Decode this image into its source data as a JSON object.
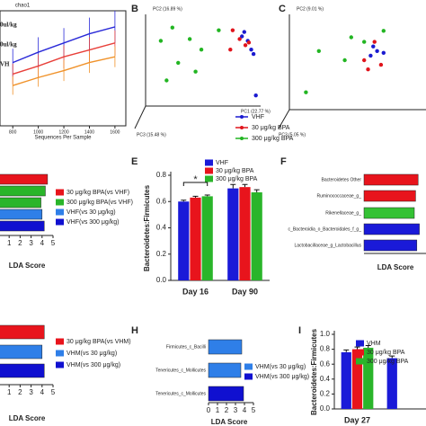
{
  "chart_data": [
    {
      "type": "line",
      "title": "chao1",
      "xlabel": "Sequences Per Sample",
      "x": [
        800,
        1000,
        1200,
        1400,
        1600
      ],
      "xlim": [
        700,
        1650
      ],
      "xticks": [
        800,
        1000,
        1200,
        1400,
        1600
      ],
      "ylim": [
        0,
        100
      ],
      "series": [
        {
          "name": "0ul/kg",
          "color": "#2a2ad8",
          "values": [
            55,
            64,
            72,
            80,
            86
          ],
          "errors": [
            12,
            13,
            13,
            14,
            14
          ]
        },
        {
          "name": "0ul/kg",
          "color": "#e8403a",
          "values": [
            45,
            52,
            60,
            66,
            72
          ],
          "errors": [
            9,
            10,
            10,
            11,
            11
          ]
        },
        {
          "name": "VH",
          "color": "#f0922a",
          "values": [
            35,
            42,
            48,
            55,
            60
          ],
          "errors": [
            8,
            8,
            9,
            9,
            9
          ]
        }
      ]
    },
    {
      "type": "scatter",
      "label": "B",
      "ylabel": "PC2 (16.89 %)",
      "xlabel": "PC1 (22.77 %)",
      "zlabel": "PC3 (15.48 %)",
      "xlim": [
        0,
        100
      ],
      "ylim": [
        0,
        100
      ],
      "series": [
        {
          "name": "VHF",
          "color": "#1a1ad0",
          "x": [
            85,
            88,
            80,
            90,
            92,
            82
          ],
          "values": [
            70,
            60,
            75,
            55,
            8,
            80
          ]
        },
        {
          "name": "30 μg/kg BPA",
          "color": "#e0141c",
          "x": [
            72,
            78,
            83,
            70,
            86
          ],
          "values": [
            82,
            72,
            65,
            60,
            68
          ]
        },
        {
          "name": "300 μg/kg BPA",
          "color": "#22b522",
          "x": [
            20,
            35,
            10,
            45,
            25,
            40,
            60,
            15
          ],
          "values": [
            85,
            72,
            70,
            60,
            45,
            35,
            82,
            25
          ]
        }
      ]
    },
    {
      "type": "scatter",
      "label": "C",
      "ylabel": "PC2 (9.01 %)",
      "zlabel": "PC3 (5.05 %)",
      "xlim": [
        0,
        100
      ],
      "ylim": [
        0,
        100
      ],
      "series": [
        {
          "color": "#1a1ad0",
          "x": [
            62,
            65,
            60,
            70
          ],
          "values": [
            65,
            60,
            55,
            58
          ]
        },
        {
          "color": "#e0141c",
          "x": [
            55,
            58,
            68,
            63
          ],
          "values": [
            50,
            40,
            45,
            70
          ]
        },
        {
          "color": "#22b522",
          "x": [
            20,
            45,
            55,
            40,
            10,
            70
          ],
          "values": [
            60,
            75,
            70,
            50,
            15,
            82
          ]
        }
      ]
    },
    {
      "type": "hbar",
      "xlabel": "LDA Score",
      "xlim": [
        0,
        5
      ],
      "xticks": [
        1,
        2,
        3,
        4,
        5
      ],
      "values": [
        4.5,
        4.3,
        3.9,
        4.0,
        4.2
      ],
      "colors": [
        "#e8141c",
        "#2ab52a",
        "#2ab52a",
        "#2f7fe8",
        "#1010d0"
      ],
      "legend": [
        {
          "name": "30 μg/kg BPA(vs VHF)",
          "color": "#e8141c"
        },
        {
          "name": "300 μg/kg BPA(vs VHF)",
          "color": "#2ab52a"
        },
        {
          "name": "VHF(vs 30 μg/kg)",
          "color": "#2f7fe8"
        },
        {
          "name": "VHF(vs 300 μg/kg)",
          "color": "#1010d0"
        }
      ]
    },
    {
      "type": "bar",
      "label": "E",
      "ylabel": "Bacteroidetes:Firmicutes",
      "annotation": "*",
      "categories": [
        "Day 16",
        "Day 90"
      ],
      "ylim": [
        0,
        0.8
      ],
      "yticks": [
        {
          "value": 0,
          "label": "0.0"
        },
        0.2,
        0.4,
        0.6,
        0.8
      ],
      "series": [
        {
          "name": "VHF",
          "color": "#1a1ad8",
          "values": [
            0.6,
            0.7
          ],
          "errors": [
            0.01,
            0.03
          ]
        },
        {
          "name": "30 μg/kg BPA",
          "color": "#e8141c",
          "values": [
            0.63,
            0.71
          ],
          "errors": [
            0.01,
            0.02
          ]
        },
        {
          "name": "300 μg/kg BPA",
          "color": "#2ab52a",
          "values": [
            0.64,
            0.67
          ],
          "errors": [
            0.01,
            0.02
          ]
        }
      ]
    },
    {
      "type": "hbar",
      "label": "F",
      "xlabel": "LDA Score",
      "xlim": [
        0,
        5
      ],
      "categories": [
        "Bacteroidetes Other",
        "Ruminococcaceae_g_",
        "Rikenellaceae_g_",
        "c_Bacteroidia_o_Bacteroidales_f_g_",
        "Lactobacillaceae_g_Lactobacillus"
      ],
      "values": [
        4.3,
        4.1,
        4.0,
        4.4,
        4.2
      ],
      "colors": [
        "#e8141c",
        "#e8141c",
        "#34c234",
        "#1a1ad8",
        "#1a1ad8"
      ]
    },
    {
      "type": "hbar",
      "xlabel": "LDA Score",
      "xlim": [
        0,
        5
      ],
      "xticks": [
        1,
        2,
        3,
        4,
        5
      ],
      "values": [
        4.2,
        4.0,
        4.2
      ],
      "colors": [
        "#e8141c",
        "#2f7fe8",
        "#1010d0"
      ],
      "legend": [
        {
          "name": "30 μg/kg BPA(vs VHM)",
          "color": "#e8141c"
        },
        {
          "name": "VHM(vs 30 μg/kg)",
          "color": "#2f7fe8"
        },
        {
          "name": "VHM(vs 300 μg/kg)",
          "color": "#1010d0"
        }
      ]
    },
    {
      "type": "hbar",
      "label": "H",
      "xlabel": "LDA Score",
      "xlim": [
        0,
        5
      ],
      "xticks": [
        0,
        1,
        2,
        3,
        4,
        5
      ],
      "categories": [
        "Firmicutes_c_Bacilli",
        "Tenericutes_c_Mollicutes",
        "Tenericutes_c_Mollicutes"
      ],
      "values": [
        3.7,
        3.6,
        3.9
      ],
      "colors": [
        "#2f7fe8",
        "#2f7fe8",
        "#1010d0"
      ],
      "legend": [
        {
          "name": "VHM(vs 30 μg/kg)",
          "color": "#2f7fe8"
        },
        {
          "name": "VHM(vs 300 μg/kg)",
          "color": "#1010d0"
        }
      ]
    },
    {
      "type": "bar",
      "label": "I",
      "ylabel": "Bacteroidetes:Firmicutes",
      "categories": [
        "Day 27",
        null
      ],
      "ylim": [
        0,
        1.0
      ],
      "yticks": [
        {
          "value": 0,
          "label": "0.0"
        },
        {
          "value": 0.2,
          "label": "0.2"
        },
        {
          "value": 0.4,
          "label": "0.4"
        },
        {
          "value": 0.6,
          "label": "0.6"
        },
        {
          "value": 0.8,
          "label": "0.8"
        },
        {
          "value": 1.0,
          "label": "1.0"
        }
      ],
      "series": [
        {
          "name": "VHM",
          "color": "#1a1ad8",
          "values": [
            0.76,
            0.68
          ],
          "errors": [
            0.03,
            0.03
          ]
        },
        {
          "name": "30 μg/kg BPA",
          "color": "#e8141c",
          "values": [
            0.8,
            null
          ],
          "errors": [
            0.03,
            null
          ]
        },
        {
          "name": "300 μg/kg BPA",
          "color": "#2ab52a",
          "values": [
            0.82,
            null
          ],
          "errors": [
            0.03,
            null
          ]
        }
      ]
    }
  ]
}
